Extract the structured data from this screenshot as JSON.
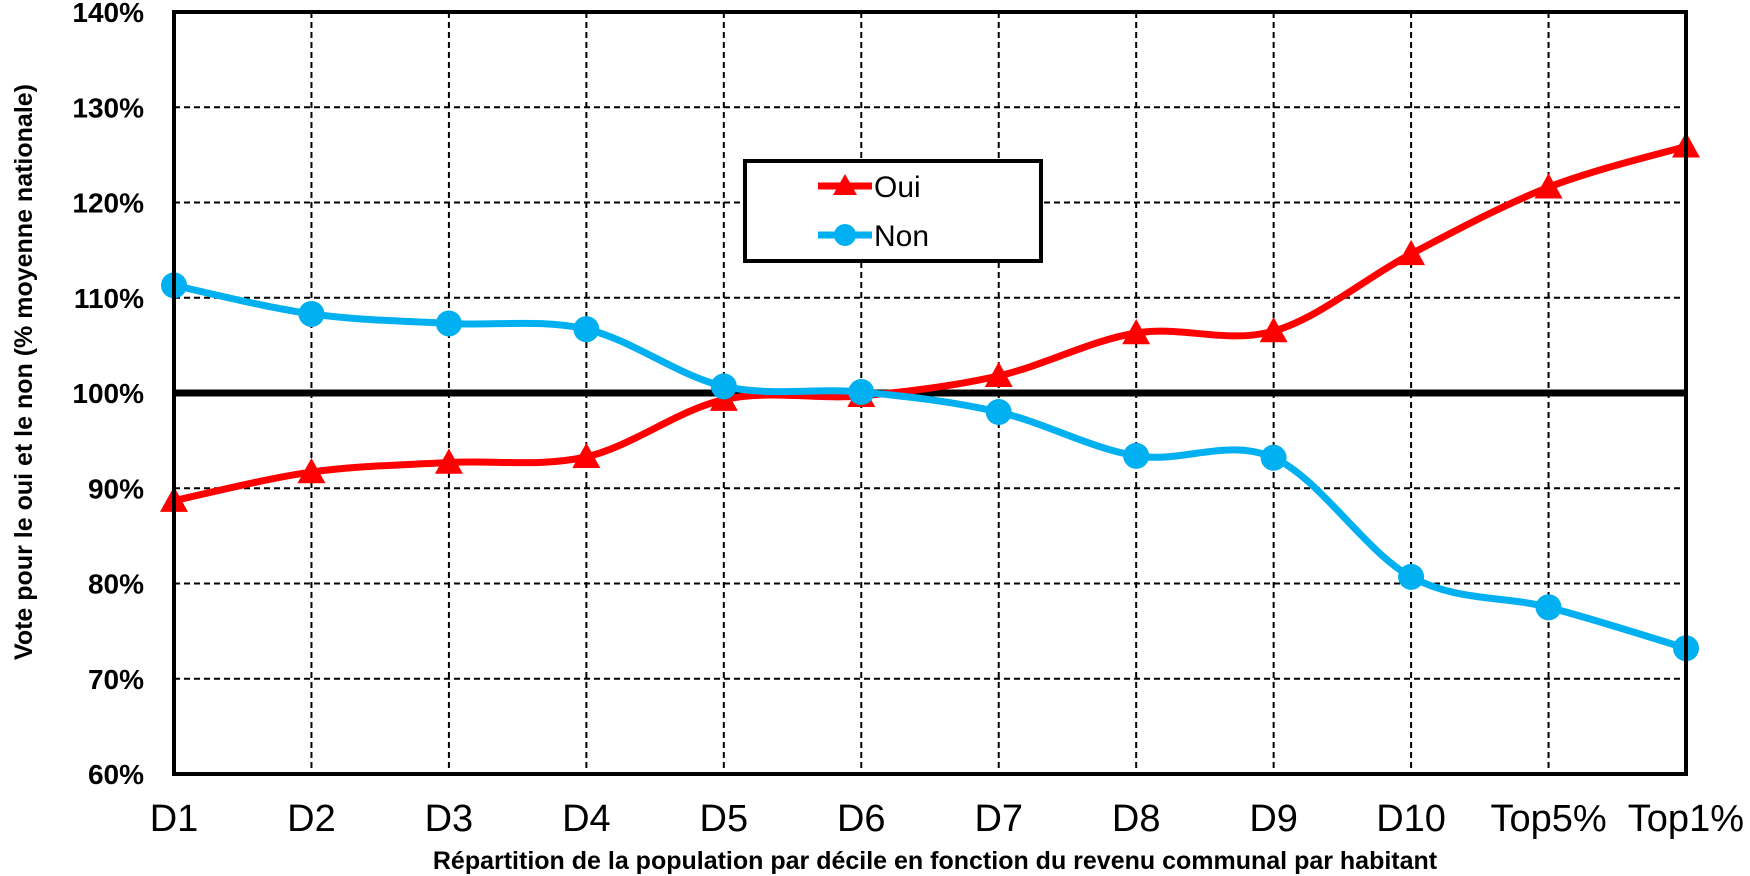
{
  "chart_data": {
    "type": "line",
    "categories": [
      "D1",
      "D2",
      "D3",
      "D4",
      "D5",
      "D6",
      "D7",
      "D8",
      "D9",
      "D10",
      "Top5%",
      "Top1%"
    ],
    "series": [
      {
        "name": "Oui",
        "color": "#ff0000",
        "marker": "triangle",
        "values": [
          88.7,
          91.7,
          92.7,
          93.3,
          99.3,
          99.7,
          101.8,
          106.3,
          106.5,
          114.6,
          121.6,
          125.9
        ]
      },
      {
        "name": "Non",
        "color": "#00b0f0",
        "marker": "circle",
        "values": [
          111.3,
          108.3,
          107.3,
          106.7,
          100.7,
          100.1,
          98.0,
          93.4,
          93.2,
          80.7,
          77.5,
          73.2
        ]
      }
    ],
    "ylim": [
      60,
      140
    ],
    "yticks": [
      "60%",
      "70%",
      "80%",
      "90%",
      "100%",
      "110%",
      "120%",
      "130%",
      "140%"
    ],
    "ylabel": "Vote pour le oui et le non (% moyenne nationale)",
    "xlabel": "Répartition de la population par décile en fonction du revenu communal par habitant",
    "reference_line": 100,
    "grid": true,
    "legend_position": "top-center"
  }
}
